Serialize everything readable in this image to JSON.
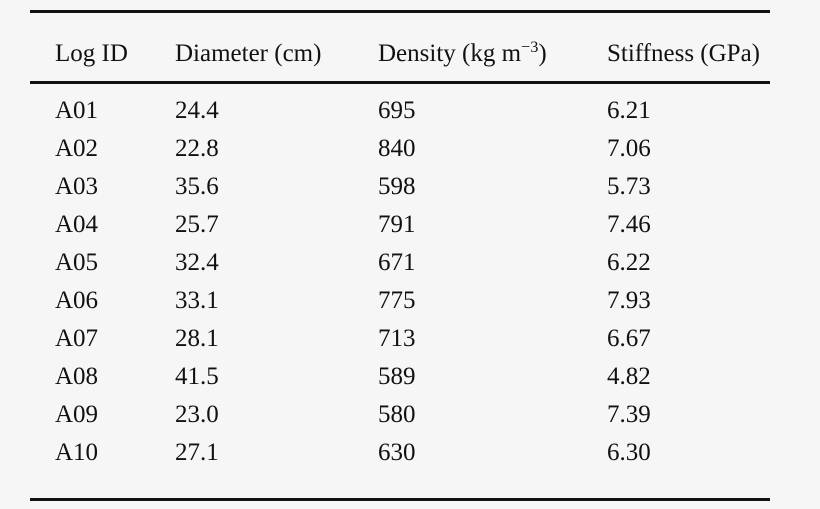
{
  "colors": {
    "background": "#f6f6f6",
    "rule": "#111111",
    "text": "#111111"
  },
  "table": {
    "columns": [
      {
        "label": "Log ID"
      },
      {
        "label": "Diameter (cm)"
      },
      {
        "label_prefix": "Density (kg m",
        "label_sup": "−3",
        "label_suffix": ")"
      },
      {
        "label": "Stiffness (GPa)"
      }
    ],
    "rows": [
      {
        "log_id": "A01",
        "diameter_cm": "24.4",
        "density_kg_m3": "695",
        "stiffness_gpa": "6.21"
      },
      {
        "log_id": "A02",
        "diameter_cm": "22.8",
        "density_kg_m3": "840",
        "stiffness_gpa": "7.06"
      },
      {
        "log_id": "A03",
        "diameter_cm": "35.6",
        "density_kg_m3": "598",
        "stiffness_gpa": "5.73"
      },
      {
        "log_id": "A04",
        "diameter_cm": "25.7",
        "density_kg_m3": "791",
        "stiffness_gpa": "7.46"
      },
      {
        "log_id": "A05",
        "diameter_cm": "32.4",
        "density_kg_m3": "671",
        "stiffness_gpa": "6.22"
      },
      {
        "log_id": "A06",
        "diameter_cm": "33.1",
        "density_kg_m3": "775",
        "stiffness_gpa": "7.93"
      },
      {
        "log_id": "A07",
        "diameter_cm": "28.1",
        "density_kg_m3": "713",
        "stiffness_gpa": "6.67"
      },
      {
        "log_id": "A08",
        "diameter_cm": "41.5",
        "density_kg_m3": "589",
        "stiffness_gpa": "4.82"
      },
      {
        "log_id": "A09",
        "diameter_cm": "23.0",
        "density_kg_m3": "580",
        "stiffness_gpa": "7.39"
      },
      {
        "log_id": "A10",
        "diameter_cm": "27.1",
        "density_kg_m3": "630",
        "stiffness_gpa": "6.30"
      }
    ]
  }
}
